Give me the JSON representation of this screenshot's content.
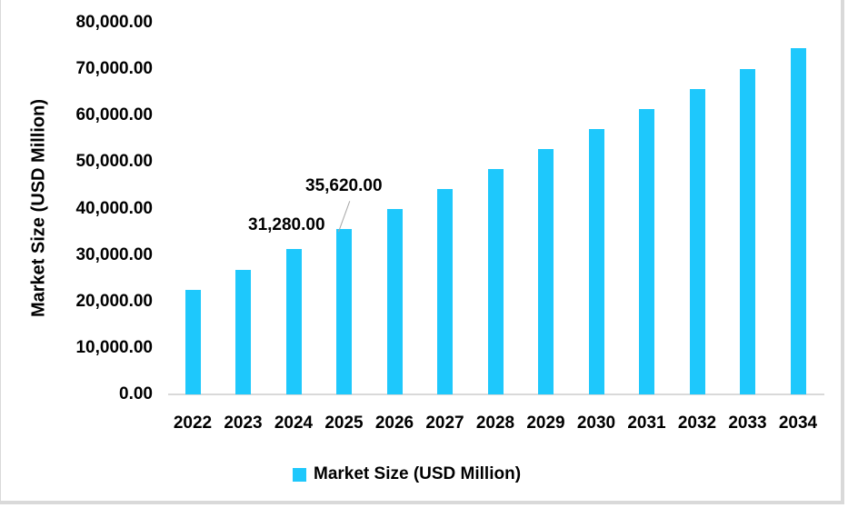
{
  "chart_data": {
    "type": "bar",
    "title": "",
    "xlabel": "",
    "ylabel": "Market Size (USD Million)",
    "ylim": [
      0,
      80000
    ],
    "yticks": [
      "0.00",
      "10,000.00",
      "20,000.00",
      "30,000.00",
      "40,000.00",
      "50,000.00",
      "60,000.00",
      "70,000.00",
      "80,000.00"
    ],
    "categories": [
      "2022",
      "2023",
      "2024",
      "2025",
      "2026",
      "2027",
      "2028",
      "2029",
      "2030",
      "2031",
      "2032",
      "2033",
      "2034"
    ],
    "series": [
      {
        "name": "Market Size (USD Million)",
        "color": "#1ec8fc",
        "values": [
          22500,
          26800,
          31280,
          35620,
          39900,
          44200,
          48500,
          52800,
          57100,
          61400,
          65700,
          70000,
          74500
        ]
      }
    ],
    "annotations": [
      {
        "category": "2024",
        "label": "31,280.00"
      },
      {
        "category": "2025",
        "label": "35,620.00"
      }
    ],
    "legend": {
      "position": "bottom",
      "entries": [
        "Market Size (USD Million)"
      ]
    },
    "grid": false
  }
}
